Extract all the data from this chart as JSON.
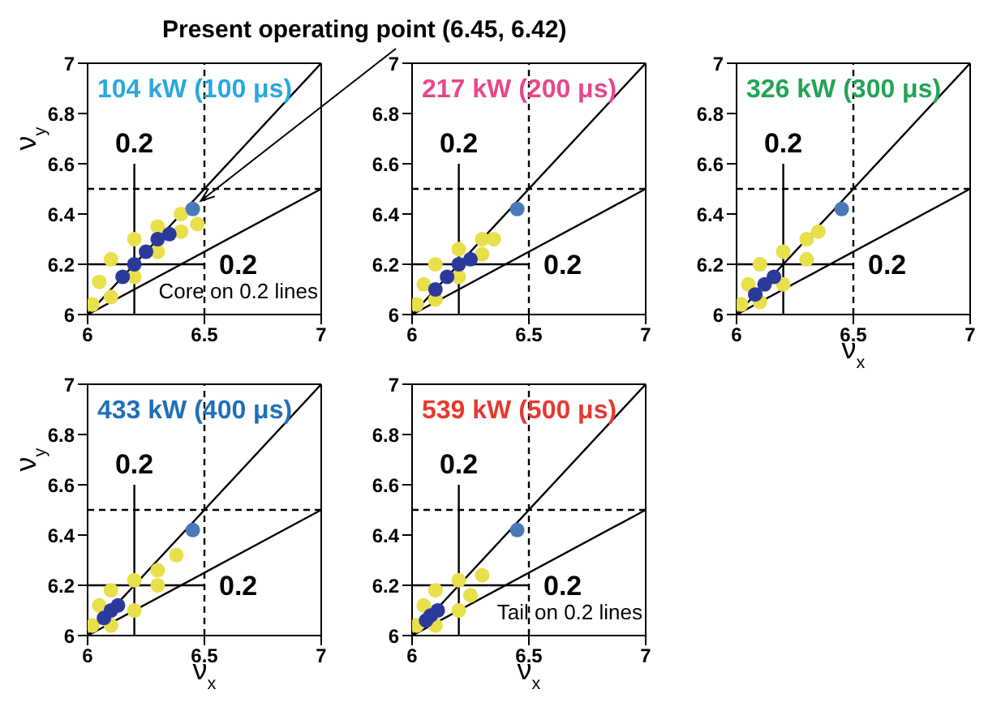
{
  "chart_data": [
    {
      "type": "scatter",
      "title": "104 kW (100 μs)",
      "ylabel": "ν$_{y}$",
      "xlim": [
        6,
        7
      ],
      "ylim": [
        6,
        7
      ],
      "xticks": [
        6,
        6.5,
        7
      ],
      "yticks": [
        6,
        6.2,
        6.4,
        6.6,
        6.8,
        7
      ],
      "annotations": [
        {
          "text": "Present operating point (6.45, 6.42)",
          "x": 6.45,
          "y": 6.42
        },
        {
          "text": "0.2",
          "x": 6.2,
          "y": 6.6
        },
        {
          "text": "0.2",
          "x": 6.5,
          "y": 6.2
        },
        "Core on 0.2 lines"
      ],
      "series": [
        {
          "type": "scatter",
          "marker": "circle",
          "color": "#e8e04a",
          "x": [
            6.02,
            6.05,
            6.1,
            6.2,
            6.3,
            6.4,
            6.47,
            6.4,
            6.3,
            6.2,
            6.1
          ],
          "values": [
            6.04,
            6.13,
            6.22,
            6.3,
            6.35,
            6.4,
            6.36,
            6.33,
            6.25,
            6.15,
            6.07
          ]
        },
        {
          "type": "scatter",
          "marker": "circle",
          "color": "#2b3a9a",
          "x": [
            6.15,
            6.2,
            6.25,
            6.3,
            6.35
          ],
          "values": [
            6.15,
            6.2,
            6.25,
            6.3,
            6.32
          ]
        },
        {
          "type": "scatter",
          "marker": "circle",
          "color": "#4a78b8",
          "x": [
            6.45
          ],
          "values": [
            6.42
          ]
        },
        {
          "type": "line",
          "color": "#000000",
          "line_style": "dashed",
          "x": [
            6.5,
            6.5
          ],
          "values": [
            6,
            7
          ]
        },
        {
          "type": "line",
          "color": "#000000",
          "line_style": "dashed",
          "x": [
            6,
            7
          ],
          "values": [
            6.5,
            6.5
          ]
        },
        {
          "type": "line",
          "color": "#000000",
          "x": [
            6,
            7
          ],
          "values": [
            6,
            7
          ]
        },
        {
          "type": "line",
          "color": "#000000",
          "x": [
            6,
            7
          ],
          "values": [
            6,
            6.5
          ]
        },
        {
          "type": "line",
          "color": "#000000",
          "x": [
            6.2,
            6.2
          ],
          "values": [
            6,
            6.6
          ]
        },
        {
          "type": "line",
          "color": "#000000",
          "x": [
            6,
            6.5
          ],
          "values": [
            6.2,
            6.2
          ]
        }
      ]
    },
    {
      "type": "scatter",
      "title": "217 kW (200 μs)",
      "xlim": [
        6,
        7
      ],
      "ylim": [
        6,
        7
      ],
      "xticks": [
        6,
        6.5,
        7
      ],
      "yticks": [
        6,
        6.2,
        6.4,
        6.6,
        6.8,
        7
      ],
      "annotations": [
        {
          "text": "0.2",
          "x": 6.2,
          "y": 6.6
        },
        {
          "text": "0.2",
          "x": 6.5,
          "y": 6.2
        }
      ],
      "series": [
        {
          "type": "scatter",
          "marker": "circle",
          "color": "#e8e04a",
          "x": [
            6.02,
            6.05,
            6.1,
            6.2,
            6.3,
            6.35,
            6.3,
            6.2,
            6.1
          ],
          "values": [
            6.04,
            6.12,
            6.2,
            6.26,
            6.3,
            6.3,
            6.24,
            6.15,
            6.06
          ]
        },
        {
          "type": "scatter",
          "marker": "circle",
          "color": "#2b3a9a",
          "x": [
            6.1,
            6.15,
            6.2,
            6.25
          ],
          "values": [
            6.1,
            6.15,
            6.2,
            6.22
          ]
        },
        {
          "type": "scatter",
          "marker": "circle",
          "color": "#4a78b8",
          "x": [
            6.45
          ],
          "values": [
            6.42
          ]
        },
        {
          "type": "line",
          "color": "#000000",
          "line_style": "dashed",
          "x": [
            6.5,
            6.5
          ],
          "values": [
            6,
            7
          ]
        },
        {
          "type": "line",
          "color": "#000000",
          "line_style": "dashed",
          "x": [
            6,
            7
          ],
          "values": [
            6.5,
            6.5
          ]
        },
        {
          "type": "line",
          "color": "#000000",
          "x": [
            6,
            7
          ],
          "values": [
            6,
            7
          ]
        },
        {
          "type": "line",
          "color": "#000000",
          "x": [
            6,
            7
          ],
          "values": [
            6,
            6.5
          ]
        },
        {
          "type": "line",
          "color": "#000000",
          "x": [
            6.2,
            6.2
          ],
          "values": [
            6,
            6.6
          ]
        },
        {
          "type": "line",
          "color": "#000000",
          "x": [
            6,
            6.5
          ],
          "values": [
            6.2,
            6.2
          ]
        }
      ]
    },
    {
      "type": "scatter",
      "title": "326 kW (300 μs)",
      "xlabel": "ν$_{x}$",
      "xlim": [
        6,
        7
      ],
      "ylim": [
        6,
        7
      ],
      "xticks": [
        6,
        6.5,
        7
      ],
      "yticks": [
        6,
        6.2,
        6.4,
        6.6,
        6.8,
        7
      ],
      "annotations": [
        {
          "text": "0.2",
          "x": 6.2,
          "y": 6.6
        },
        {
          "text": "0.2",
          "x": 6.5,
          "y": 6.2
        }
      ],
      "series": [
        {
          "type": "scatter",
          "marker": "circle",
          "color": "#e8e04a",
          "x": [
            6.02,
            6.05,
            6.1,
            6.2,
            6.3,
            6.35,
            6.3,
            6.2,
            6.1
          ],
          "values": [
            6.04,
            6.12,
            6.2,
            6.25,
            6.3,
            6.33,
            6.22,
            6.12,
            6.05
          ]
        },
        {
          "type": "scatter",
          "marker": "circle",
          "color": "#2b3a9a",
          "x": [
            6.08,
            6.12,
            6.16
          ],
          "values": [
            6.08,
            6.12,
            6.15
          ]
        },
        {
          "type": "scatter",
          "marker": "circle",
          "color": "#4a78b8",
          "x": [
            6.45
          ],
          "values": [
            6.42
          ]
        },
        {
          "type": "line",
          "color": "#000000",
          "line_style": "dashed",
          "x": [
            6.5,
            6.5
          ],
          "values": [
            6,
            7
          ]
        },
        {
          "type": "line",
          "color": "#000000",
          "line_style": "dashed",
          "x": [
            6,
            7
          ],
          "values": [
            6.5,
            6.5
          ]
        },
        {
          "type": "line",
          "color": "#000000",
          "x": [
            6,
            7
          ],
          "values": [
            6,
            7
          ]
        },
        {
          "type": "line",
          "color": "#000000",
          "x": [
            6,
            7
          ],
          "values": [
            6,
            6.5
          ]
        },
        {
          "type": "line",
          "color": "#000000",
          "x": [
            6.2,
            6.2
          ],
          "values": [
            6,
            6.6
          ]
        },
        {
          "type": "line",
          "color": "#000000",
          "x": [
            6,
            6.5
          ],
          "values": [
            6.2,
            6.2
          ]
        }
      ]
    },
    {
      "type": "scatter",
      "title": "433 kW (400 μs)",
      "xlabel": "ν$_{x}$",
      "ylabel": "ν$_{y}$",
      "xlim": [
        6,
        7
      ],
      "ylim": [
        6,
        7
      ],
      "xticks": [
        6,
        6.5,
        7
      ],
      "yticks": [
        6,
        6.2,
        6.4,
        6.6,
        6.8,
        7
      ],
      "annotations": [
        {
          "text": "0.2",
          "x": 6.2,
          "y": 6.6
        },
        {
          "text": "0.2",
          "x": 6.5,
          "y": 6.2
        }
      ],
      "series": [
        {
          "type": "scatter",
          "marker": "circle",
          "color": "#e8e04a",
          "x": [
            6.02,
            6.05,
            6.1,
            6.2,
            6.3,
            6.38,
            6.3,
            6.2,
            6.1
          ],
          "values": [
            6.04,
            6.12,
            6.18,
            6.22,
            6.26,
            6.32,
            6.2,
            6.1,
            6.04
          ]
        },
        {
          "type": "scatter",
          "marker": "circle",
          "color": "#2b3a9a",
          "x": [
            6.07,
            6.1,
            6.13
          ],
          "values": [
            6.07,
            6.1,
            6.12
          ]
        },
        {
          "type": "scatter",
          "marker": "circle",
          "color": "#4a78b8",
          "x": [
            6.45
          ],
          "values": [
            6.42
          ]
        },
        {
          "type": "line",
          "color": "#000000",
          "line_style": "dashed",
          "x": [
            6.5,
            6.5
          ],
          "values": [
            6,
            7
          ]
        },
        {
          "type": "line",
          "color": "#000000",
          "line_style": "dashed",
          "x": [
            6,
            7
          ],
          "values": [
            6.5,
            6.5
          ]
        },
        {
          "type": "line",
          "color": "#000000",
          "x": [
            6,
            7
          ],
          "values": [
            6,
            7
          ]
        },
        {
          "type": "line",
          "color": "#000000",
          "x": [
            6,
            7
          ],
          "values": [
            6,
            6.5
          ]
        },
        {
          "type": "line",
          "color": "#000000",
          "x": [
            6.2,
            6.2
          ],
          "values": [
            6,
            6.6
          ]
        },
        {
          "type": "line",
          "color": "#000000",
          "x": [
            6,
            6.5
          ],
          "values": [
            6.2,
            6.2
          ]
        }
      ]
    },
    {
      "type": "scatter",
      "title": "539 kW (500 μs)",
      "xlabel": "ν$_{x}$",
      "xlim": [
        6,
        7
      ],
      "ylim": [
        6,
        7
      ],
      "xticks": [
        6,
        6.5,
        7
      ],
      "yticks": [
        6,
        6.2,
        6.4,
        6.6,
        6.8,
        7
      ],
      "annotations": [
        {
          "text": "0.2",
          "x": 6.2,
          "y": 6.6
        },
        {
          "text": "0.2",
          "x": 6.5,
          "y": 6.2
        },
        "Tail on 0.2 lines"
      ],
      "series": [
        {
          "type": "scatter",
          "marker": "circle",
          "color": "#e8e04a",
          "x": [
            6.02,
            6.05,
            6.1,
            6.2,
            6.3,
            6.25,
            6.2,
            6.1
          ],
          "values": [
            6.04,
            6.12,
            6.18,
            6.22,
            6.24,
            6.16,
            6.1,
            6.04
          ]
        },
        {
          "type": "scatter",
          "marker": "circle",
          "color": "#2b3a9a",
          "x": [
            6.06,
            6.08,
            6.11
          ],
          "values": [
            6.06,
            6.08,
            6.1
          ]
        },
        {
          "type": "scatter",
          "marker": "circle",
          "color": "#4a78b8",
          "x": [
            6.45
          ],
          "values": [
            6.42
          ]
        },
        {
          "type": "line",
          "color": "#000000",
          "line_style": "dashed",
          "x": [
            6.5,
            6.5
          ],
          "values": [
            6,
            7
          ]
        },
        {
          "type": "line",
          "color": "#000000",
          "line_style": "dashed",
          "x": [
            6,
            7
          ],
          "values": [
            6.5,
            6.5
          ]
        },
        {
          "type": "line",
          "color": "#000000",
          "x": [
            6,
            7
          ],
          "values": [
            6,
            7
          ]
        },
        {
          "type": "line",
          "color": "#000000",
          "x": [
            6,
            7
          ],
          "values": [
            6,
            6.5
          ]
        },
        {
          "type": "line",
          "color": "#000000",
          "x": [
            6.2,
            6.2
          ],
          "values": [
            6,
            6.6
          ]
        },
        {
          "type": "line",
          "color": "#000000",
          "x": [
            6,
            6.5
          ],
          "values": [
            6.2,
            6.2
          ]
        }
      ]
    }
  ]
}
